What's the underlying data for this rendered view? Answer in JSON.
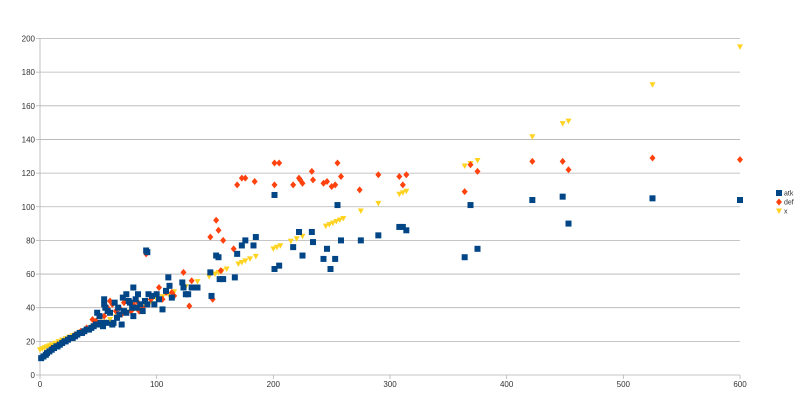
{
  "chart_data": {
    "type": "scatter",
    "title": "",
    "xlabel": "",
    "ylabel": "",
    "xlim": [
      0,
      600
    ],
    "ylim": [
      0,
      200
    ],
    "x_ticks": [
      "0",
      "100",
      "200",
      "300",
      "400",
      "500",
      "600"
    ],
    "y_ticks": [
      "0",
      "20",
      "40",
      "60",
      "80",
      "100",
      "120",
      "140",
      "160",
      "180",
      "200"
    ],
    "grid": "horizontal",
    "legend_position": "right",
    "series": [
      {
        "name": "atk",
        "marker": "square",
        "color": "#004586",
        "points": [
          [
            1,
            10
          ],
          [
            3,
            11
          ],
          [
            5,
            12
          ],
          [
            6,
            13
          ],
          [
            8,
            14
          ],
          [
            10,
            15
          ],
          [
            12,
            16
          ],
          [
            14,
            17
          ],
          [
            15,
            17
          ],
          [
            17,
            18
          ],
          [
            19,
            19
          ],
          [
            21,
            20
          ],
          [
            22,
            20
          ],
          [
            24,
            21
          ],
          [
            26,
            22
          ],
          [
            28,
            22
          ],
          [
            30,
            23
          ],
          [
            32,
            24
          ],
          [
            34,
            25
          ],
          [
            36,
            25
          ],
          [
            38,
            26
          ],
          [
            40,
            27
          ],
          [
            42,
            27
          ],
          [
            44,
            28
          ],
          [
            46,
            29
          ],
          [
            48,
            30
          ],
          [
            50,
            30
          ],
          [
            52,
            31
          ],
          [
            54,
            29
          ],
          [
            49,
            37
          ],
          [
            51,
            35
          ],
          [
            55,
            45
          ],
          [
            55,
            42
          ],
          [
            56,
            40
          ],
          [
            57,
            31
          ],
          [
            58,
            38
          ],
          [
            60,
            37
          ],
          [
            62,
            30
          ],
          [
            63,
            31
          ],
          [
            64,
            43
          ],
          [
            66,
            34
          ],
          [
            67,
            40
          ],
          [
            68,
            36
          ],
          [
            70,
            30
          ],
          [
            71,
            46
          ],
          [
            72,
            38
          ],
          [
            74,
            48
          ],
          [
            74,
            37
          ],
          [
            76,
            44
          ],
          [
            77,
            43
          ],
          [
            79,
            40
          ],
          [
            80,
            52
          ],
          [
            80,
            35
          ],
          [
            82,
            45
          ],
          [
            83,
            40
          ],
          [
            84,
            48
          ],
          [
            86,
            42
          ],
          [
            88,
            38
          ],
          [
            90,
            44
          ],
          [
            91,
            74
          ],
          [
            92,
            42
          ],
          [
            92,
            73
          ],
          [
            93,
            48
          ],
          [
            96,
            47
          ],
          [
            98,
            42
          ],
          [
            100,
            48
          ],
          [
            102,
            45
          ],
          [
            105,
            39
          ],
          [
            108,
            50
          ],
          [
            110,
            58
          ],
          [
            111,
            53
          ],
          [
            113,
            46
          ],
          [
            122,
            55
          ],
          [
            123,
            52
          ],
          [
            125,
            48
          ],
          [
            127,
            48
          ],
          [
            130,
            52
          ],
          [
            135,
            52
          ],
          [
            146,
            61
          ],
          [
            147,
            47
          ],
          [
            151,
            71
          ],
          [
            153,
            70
          ],
          [
            154,
            57
          ],
          [
            157,
            57
          ],
          [
            167,
            58
          ],
          [
            169,
            72
          ],
          [
            173,
            77
          ],
          [
            176,
            80
          ],
          [
            183,
            77
          ],
          [
            185,
            82
          ],
          [
            201,
            63
          ],
          [
            201,
            107
          ],
          [
            205,
            65
          ],
          [
            217,
            76
          ],
          [
            222,
            85
          ],
          [
            225,
            71
          ],
          [
            233,
            85
          ],
          [
            234,
            79
          ],
          [
            243,
            69
          ],
          [
            246,
            75
          ],
          [
            249,
            63
          ],
          [
            253,
            69
          ],
          [
            255,
            101
          ],
          [
            258,
            80
          ],
          [
            275,
            80
          ],
          [
            290,
            83
          ],
          [
            308,
            88
          ],
          [
            311,
            88
          ],
          [
            314,
            86
          ],
          [
            364,
            70
          ],
          [
            369,
            101
          ],
          [
            375,
            75
          ],
          [
            422,
            104
          ],
          [
            448,
            106
          ],
          [
            453,
            90
          ],
          [
            525,
            105
          ],
          [
            600,
            104
          ]
        ]
      },
      {
        "name": "def",
        "marker": "diamond",
        "color": "#ff420e",
        "points": [
          [
            2,
            11
          ],
          [
            5,
            13
          ],
          [
            10,
            16
          ],
          [
            15,
            18
          ],
          [
            20,
            20
          ],
          [
            25,
            22
          ],
          [
            30,
            24
          ],
          [
            35,
            26
          ],
          [
            40,
            28
          ],
          [
            45,
            33
          ],
          [
            48,
            32
          ],
          [
            52,
            31
          ],
          [
            55,
            35
          ],
          [
            58,
            40
          ],
          [
            60,
            44
          ],
          [
            62,
            42
          ],
          [
            65,
            38
          ],
          [
            68,
            40
          ],
          [
            70,
            36
          ],
          [
            72,
            43
          ],
          [
            75,
            44
          ],
          [
            78,
            38
          ],
          [
            80,
            42
          ],
          [
            83,
            44
          ],
          [
            85,
            38
          ],
          [
            88,
            40
          ],
          [
            91,
            72
          ],
          [
            95,
            45
          ],
          [
            100,
            48
          ],
          [
            102,
            52
          ],
          [
            105,
            45
          ],
          [
            108,
            49
          ],
          [
            113,
            49
          ],
          [
            115,
            47
          ],
          [
            123,
            61
          ],
          [
            128,
            41
          ],
          [
            130,
            56
          ],
          [
            146,
            82
          ],
          [
            148,
            45
          ],
          [
            151,
            92
          ],
          [
            153,
            86
          ],
          [
            155,
            62
          ],
          [
            157,
            80
          ],
          [
            166,
            75
          ],
          [
            169,
            113
          ],
          [
            173,
            117
          ],
          [
            176,
            117
          ],
          [
            184,
            115
          ],
          [
            201,
            113
          ],
          [
            201,
            126
          ],
          [
            205,
            126
          ],
          [
            217,
            113
          ],
          [
            222,
            117
          ],
          [
            223,
            116
          ],
          [
            225,
            114
          ],
          [
            233,
            121
          ],
          [
            234,
            116
          ],
          [
            243,
            114
          ],
          [
            246,
            115
          ],
          [
            250,
            112
          ],
          [
            253,
            113
          ],
          [
            255,
            126
          ],
          [
            258,
            118
          ],
          [
            274,
            110
          ],
          [
            290,
            119
          ],
          [
            308,
            118
          ],
          [
            311,
            113
          ],
          [
            314,
            119
          ],
          [
            364,
            109
          ],
          [
            369,
            125
          ],
          [
            375,
            121
          ],
          [
            422,
            127
          ],
          [
            448,
            127
          ],
          [
            453,
            122
          ],
          [
            525,
            129
          ],
          [
            600,
            128
          ]
        ]
      },
      {
        "name": "x",
        "marker": "triangle-down",
        "color": "#ffd320",
        "points": [
          [
            0,
            15
          ],
          [
            2,
            15.6
          ],
          [
            4,
            16.2
          ],
          [
            6,
            16.8
          ],
          [
            8,
            17.4
          ],
          [
            10,
            18
          ],
          [
            13,
            18.9
          ],
          [
            16,
            19.8
          ],
          [
            19,
            20.7
          ],
          [
            22,
            21.6
          ],
          [
            25,
            22.5
          ],
          [
            28,
            23.4
          ],
          [
            31,
            24.3
          ],
          [
            35,
            25.5
          ],
          [
            40,
            27
          ],
          [
            45,
            28.5
          ],
          [
            50,
            30
          ],
          [
            55,
            31.5
          ],
          [
            60,
            33
          ],
          [
            65,
            34.5
          ],
          [
            70,
            36
          ],
          [
            75,
            37.5
          ],
          [
            80,
            39
          ],
          [
            85,
            40.5
          ],
          [
            90,
            42
          ],
          [
            95,
            43.5
          ],
          [
            100,
            45
          ],
          [
            105,
            46.5
          ],
          [
            110,
            48
          ],
          [
            115,
            49.5
          ],
          [
            125,
            52.5
          ],
          [
            135,
            55.5
          ],
          [
            145,
            58.5
          ],
          [
            150,
            60
          ],
          [
            153,
            60.9
          ],
          [
            156,
            61.8
          ],
          [
            160,
            63
          ],
          [
            170,
            66
          ],
          [
            173,
            66.9
          ],
          [
            176,
            67.8
          ],
          [
            180,
            69
          ],
          [
            185,
            70.5
          ],
          [
            200,
            75
          ],
          [
            203,
            75.9
          ],
          [
            206,
            76.8
          ],
          [
            215,
            79.5
          ],
          [
            220,
            81
          ],
          [
            225,
            82.5
          ],
          [
            245,
            88.5
          ],
          [
            248,
            89.4
          ],
          [
            251,
            90.3
          ],
          [
            254,
            91.2
          ],
          [
            257,
            92.1
          ],
          [
            260,
            93
          ],
          [
            275,
            97.5
          ],
          [
            290,
            102
          ],
          [
            308,
            107.4
          ],
          [
            311,
            108.3
          ],
          [
            314,
            109.2
          ],
          [
            364,
            124.2
          ],
          [
            369,
            125.7
          ],
          [
            375,
            127.5
          ],
          [
            422,
            141.6
          ],
          [
            448,
            149.4
          ],
          [
            453,
            150.9
          ],
          [
            525,
            172.5
          ],
          [
            600,
            195
          ]
        ]
      }
    ]
  }
}
